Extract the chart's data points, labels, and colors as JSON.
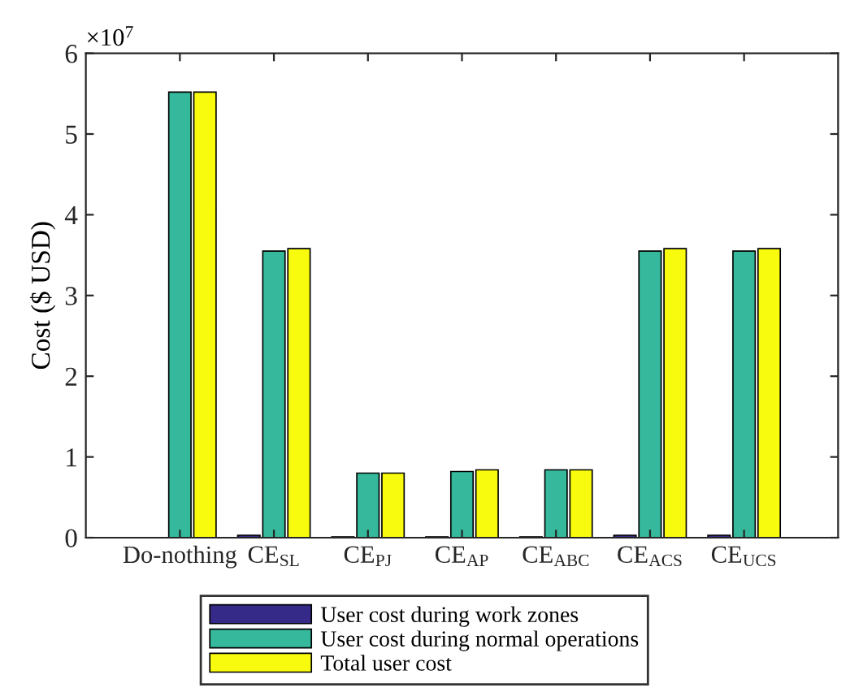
{
  "chart_data": {
    "type": "bar",
    "ylabel": "Cost ($ USD)",
    "annotations": [
      "×10$^{7}$"
    ],
    "categories": [
      "Do-nothing",
      "CE$_{SL}$",
      "CE$_{PJ}$",
      "CE$_{AP}$",
      "CE$_{ABC}$",
      "CE$_{ACS}$",
      "CE$_{UCS}$"
    ],
    "series": [
      {
        "name": "User cost during work zones",
        "color": "#352a87",
        "values": [
          0,
          0.03,
          0.01,
          0.01,
          0.01,
          0.03,
          0.03
        ]
      },
      {
        "name": "User cost during normal operations",
        "color": "#35b89b",
        "values": [
          5.52,
          3.55,
          0.8,
          0.82,
          0.84,
          3.55,
          3.55
        ]
      },
      {
        "name": "Total user cost",
        "color": "#f9fb0e",
        "values": [
          5.52,
          3.58,
          0.8,
          0.84,
          0.84,
          3.58,
          3.58
        ]
      }
    ],
    "ylim": [
      0,
      6
    ],
    "yticks": [
      0,
      1,
      2,
      3,
      4,
      5,
      6
    ],
    "grid": false,
    "legend": "bottom"
  }
}
